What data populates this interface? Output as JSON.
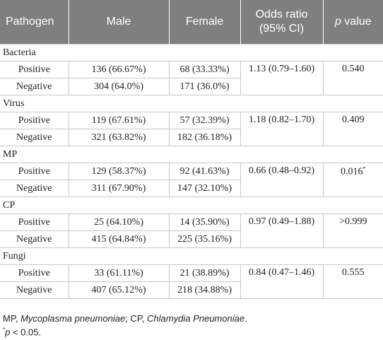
{
  "table": {
    "header": [
      "Pathogen",
      "Male",
      "Female",
      "Odds ratio\n(95% CI)",
      {
        "italic": "p",
        "rest": "value"
      }
    ],
    "groups": [
      {
        "name": "Bacteria",
        "rows": [
          {
            "label": "Positive",
            "male": "136 (66.67%)",
            "female": "68 (33.33%)"
          },
          {
            "label": "Negative",
            "male": "304 (64.0%)",
            "female": "171 (36.0%)"
          }
        ],
        "odds_ratio": "1.13 (0.79–1.60)",
        "p_value": "0.540"
      },
      {
        "name": "Virus",
        "rows": [
          {
            "label": "Positive",
            "male": "119 (67.61%)",
            "female": "57 (32.39%)"
          },
          {
            "label": "Negative",
            "male": "321 (63.82%)",
            "female": "182 (36.18%)"
          }
        ],
        "odds_ratio": "1.18 (0.82–1.70)",
        "p_value": "0.409"
      },
      {
        "name": "MP",
        "rows": [
          {
            "label": "Positive",
            "male": "129 (58.37%)",
            "female": "92 (41.63%)"
          },
          {
            "label": "Negative",
            "male": "311 (67.90%)",
            "female": "147 (32.10%)"
          }
        ],
        "odds_ratio": "0.66 (0.48–0.92)",
        "p_value": "0.016",
        "p_mark": "*"
      },
      {
        "name": "CP",
        "rows": [
          {
            "label": "Positive",
            "male": "25 (64.10%)",
            "female": "14 (35.90%)"
          },
          {
            "label": "Negative",
            "male": "415 (64.84%)",
            "female": "225 (35.16%)"
          }
        ],
        "odds_ratio": "0.97 (0.49–1.88)",
        "p_value": ">0.999"
      },
      {
        "name": "Fungi",
        "rows": [
          {
            "label": "Positive",
            "male": "33 (61.11%)",
            "female": "21 (38.89%)"
          },
          {
            "label": "Negative",
            "male": "407 (65.12%)",
            "female": "218 (34.88%)"
          }
        ],
        "odds_ratio": "0.84 (0.47–1.46)",
        "p_value": "0.555"
      }
    ]
  },
  "footnotes": {
    "abbrev": [
      "MP, ",
      "Mycoplasma pneumoniae",
      "; CP, ",
      "Chlamydia Pneumoniae",
      "."
    ],
    "signif": [
      "*",
      "p",
      " < 0.05."
    ]
  }
}
